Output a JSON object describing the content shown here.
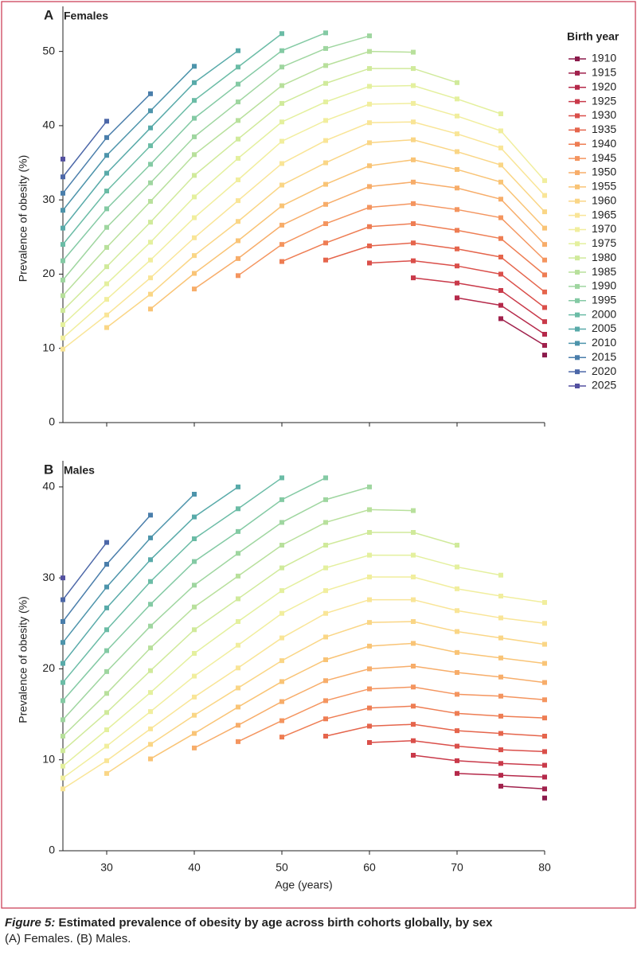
{
  "chart_data": [
    {
      "type": "line",
      "panel_label": "A",
      "title": "Females",
      "ylabel": "Prevalence of obesity (%)",
      "legend_title": "Birth year",
      "x": [
        25,
        30,
        35,
        40,
        45,
        50,
        55,
        60,
        65,
        70,
        75,
        80
      ],
      "xlim": [
        25,
        80
      ],
      "xticks": [
        30,
        40,
        50,
        60,
        70,
        80
      ],
      "ylim": [
        0,
        55
      ],
      "yticks": [
        0,
        10,
        20,
        30,
        40,
        50
      ],
      "series": [
        {
          "name": "1910",
          "color": "#8b1a4b",
          "values": [
            null,
            null,
            null,
            null,
            null,
            null,
            null,
            null,
            null,
            null,
            null,
            9.1
          ]
        },
        {
          "name": "1915",
          "color": "#a0214c",
          "values": [
            null,
            null,
            null,
            null,
            null,
            null,
            null,
            null,
            null,
            null,
            14.0,
            10.4
          ]
        },
        {
          "name": "1920",
          "color": "#b5294a",
          "values": [
            null,
            null,
            null,
            null,
            null,
            null,
            null,
            null,
            null,
            16.8,
            15.8,
            11.9
          ]
        },
        {
          "name": "1925",
          "color": "#c93a4a",
          "values": [
            null,
            null,
            null,
            null,
            null,
            null,
            null,
            null,
            19.5,
            18.8,
            17.8,
            13.6
          ]
        },
        {
          "name": "1930",
          "color": "#da4f4a",
          "values": [
            null,
            null,
            null,
            null,
            null,
            null,
            null,
            21.5,
            21.8,
            21.1,
            20.0,
            15.5
          ]
        },
        {
          "name": "1935",
          "color": "#e5654c",
          "values": [
            null,
            null,
            null,
            null,
            null,
            null,
            21.9,
            23.8,
            24.2,
            23.4,
            22.3,
            17.6
          ]
        },
        {
          "name": "1940",
          "color": "#ee7d53",
          "values": [
            null,
            null,
            null,
            null,
            null,
            21.7,
            24.2,
            26.4,
            26.8,
            25.9,
            24.8,
            19.9
          ]
        },
        {
          "name": "1945",
          "color": "#f4955f",
          "values": [
            null,
            null,
            null,
            null,
            19.8,
            24.0,
            26.8,
            29.0,
            29.5,
            28.7,
            27.6,
            21.9
          ]
        },
        {
          "name": "1950",
          "color": "#f7ad6a",
          "values": [
            null,
            null,
            null,
            18.0,
            22.1,
            26.6,
            29.4,
            31.8,
            32.4,
            31.6,
            30.1,
            24.0
          ]
        },
        {
          "name": "1955",
          "color": "#f9c476",
          "values": [
            null,
            null,
            15.3,
            20.1,
            24.5,
            29.2,
            32.1,
            34.6,
            35.4,
            34.1,
            32.4,
            26.2
          ]
        },
        {
          "name": "1960",
          "color": "#fad686",
          "values": [
            null,
            12.8,
            17.3,
            22.5,
            27.1,
            32.0,
            35.0,
            37.7,
            38.1,
            36.5,
            34.7,
            28.4
          ]
        },
        {
          "name": "1965",
          "color": "#f9e597",
          "values": [
            9.9,
            14.5,
            19.5,
            24.9,
            29.9,
            34.9,
            38.0,
            40.4,
            40.5,
            38.9,
            37.0,
            30.6
          ]
        },
        {
          "name": "1970",
          "color": "#f1ee9e",
          "values": [
            11.4,
            16.6,
            21.9,
            27.6,
            32.7,
            37.9,
            40.7,
            42.9,
            43.0,
            41.3,
            39.3,
            32.6
          ]
        },
        {
          "name": "1975",
          "color": "#e4f09e",
          "values": [
            13.2,
            18.7,
            24.3,
            30.4,
            35.6,
            40.5,
            43.2,
            45.3,
            45.4,
            43.6,
            41.6,
            null
          ]
        },
        {
          "name": "1980",
          "color": "#d0ea9b",
          "values": [
            15.1,
            21.0,
            27.0,
            33.3,
            38.2,
            43.0,
            45.7,
            47.7,
            47.7,
            45.8,
            null,
            null
          ]
        },
        {
          "name": "1985",
          "color": "#b8e09c",
          "values": [
            17.1,
            23.6,
            29.8,
            36.1,
            40.7,
            45.4,
            48.1,
            50.0,
            49.9,
            null,
            null,
            null
          ]
        },
        {
          "name": "1990",
          "color": "#9fd6a0",
          "values": [
            19.2,
            26.3,
            32.3,
            38.5,
            43.2,
            47.9,
            50.4,
            52.1,
            null,
            null,
            null,
            null
          ]
        },
        {
          "name": "1995",
          "color": "#84caa4",
          "values": [
            21.8,
            28.8,
            34.8,
            41.0,
            45.6,
            50.1,
            52.5,
            null,
            null,
            null,
            null,
            null
          ]
        },
        {
          "name": "2000",
          "color": "#6bbca6",
          "values": [
            24.0,
            31.2,
            37.3,
            43.4,
            47.9,
            52.4,
            null,
            null,
            null,
            null,
            null,
            null
          ]
        },
        {
          "name": "2005",
          "color": "#58aaa9",
          "values": [
            26.2,
            33.6,
            39.7,
            45.8,
            50.1,
            null,
            null,
            null,
            null,
            null,
            null,
            null
          ]
        },
        {
          "name": "2010",
          "color": "#4d94ab",
          "values": [
            28.6,
            36.0,
            42.0,
            48.0,
            null,
            null,
            null,
            null,
            null,
            null,
            null,
            null
          ]
        },
        {
          "name": "2015",
          "color": "#4a7eab",
          "values": [
            30.9,
            38.4,
            44.3,
            null,
            null,
            null,
            null,
            null,
            null,
            null,
            null,
            null
          ]
        },
        {
          "name": "2020",
          "color": "#4c67a8",
          "values": [
            33.1,
            40.6,
            null,
            null,
            null,
            null,
            null,
            null,
            null,
            null,
            null,
            null
          ]
        },
        {
          "name": "2025",
          "color": "#5350a0",
          "values": [
            35.5,
            null,
            null,
            null,
            null,
            null,
            null,
            null,
            null,
            null,
            null,
            null
          ]
        }
      ]
    },
    {
      "type": "line",
      "panel_label": "B",
      "title": "Males",
      "ylabel": "Prevalence of obesity (%)",
      "xlabel": "Age (years)",
      "x": [
        25,
        30,
        35,
        40,
        45,
        50,
        55,
        60,
        65,
        70,
        75,
        80
      ],
      "xlim": [
        25,
        80
      ],
      "xticks": [
        30,
        40,
        50,
        60,
        70,
        80
      ],
      "ylim": [
        0,
        42
      ],
      "yticks": [
        0,
        10,
        20,
        30,
        40
      ],
      "series": [
        {
          "color": "#8b1a4b",
          "values": [
            null,
            null,
            null,
            null,
            null,
            null,
            null,
            null,
            null,
            null,
            null,
            5.8
          ]
        },
        {
          "color": "#a0214c",
          "values": [
            null,
            null,
            null,
            null,
            null,
            null,
            null,
            null,
            null,
            null,
            7.1,
            6.8
          ]
        },
        {
          "color": "#b5294a",
          "values": [
            null,
            null,
            null,
            null,
            null,
            null,
            null,
            null,
            null,
            8.5,
            8.3,
            8.1
          ]
        },
        {
          "color": "#c93a4a",
          "values": [
            null,
            null,
            null,
            null,
            null,
            null,
            null,
            null,
            10.5,
            9.9,
            9.6,
            9.4
          ]
        },
        {
          "color": "#da4f4a",
          "values": [
            null,
            null,
            null,
            null,
            null,
            null,
            null,
            11.9,
            12.1,
            11.5,
            11.1,
            10.9
          ]
        },
        {
          "color": "#e5654c",
          "values": [
            null,
            null,
            null,
            null,
            null,
            null,
            12.6,
            13.7,
            13.9,
            13.2,
            12.9,
            12.6
          ]
        },
        {
          "color": "#ee7d53",
          "values": [
            null,
            null,
            null,
            null,
            null,
            12.5,
            14.5,
            15.7,
            15.9,
            15.1,
            14.8,
            14.6
          ]
        },
        {
          "color": "#f4955f",
          "values": [
            null,
            null,
            null,
            null,
            12.0,
            14.3,
            16.5,
            17.8,
            18.0,
            17.2,
            17.0,
            16.6
          ]
        },
        {
          "color": "#f7ad6a",
          "values": [
            null,
            null,
            null,
            11.3,
            13.8,
            16.4,
            18.7,
            20.0,
            20.3,
            19.6,
            19.1,
            18.5
          ]
        },
        {
          "color": "#f9c476",
          "values": [
            null,
            null,
            10.1,
            12.9,
            15.8,
            18.6,
            21.0,
            22.5,
            22.8,
            21.8,
            21.2,
            20.6
          ]
        },
        {
          "color": "#fad686",
          "values": [
            null,
            8.5,
            11.7,
            14.9,
            17.9,
            20.9,
            23.5,
            25.1,
            25.2,
            24.1,
            23.4,
            22.7
          ]
        },
        {
          "color": "#f9e597",
          "values": [
            6.8,
            9.9,
            13.4,
            16.9,
            20.1,
            23.4,
            26.1,
            27.6,
            27.6,
            26.4,
            25.6,
            25.0
          ]
        },
        {
          "color": "#f1ee9e",
          "values": [
            8.0,
            11.5,
            15.3,
            19.2,
            22.6,
            26.1,
            28.6,
            30.1,
            30.1,
            28.8,
            28.0,
            27.3
          ]
        },
        {
          "color": "#e4f09e",
          "values": [
            9.3,
            13.3,
            17.4,
            21.7,
            25.2,
            28.6,
            31.1,
            32.5,
            32.5,
            31.2,
            30.3,
            null
          ]
        },
        {
          "color": "#d0ea9b",
          "values": [
            11.0,
            15.2,
            19.8,
            24.3,
            27.7,
            31.1,
            33.6,
            35.0,
            35.0,
            33.6,
            null,
            null
          ]
        },
        {
          "color": "#b8e09c",
          "values": [
            12.6,
            17.3,
            22.3,
            26.8,
            30.2,
            33.6,
            36.1,
            37.5,
            37.4,
            null,
            null,
            null
          ]
        },
        {
          "color": "#9fd6a0",
          "values": [
            14.4,
            19.7,
            24.7,
            29.2,
            32.7,
            36.1,
            38.6,
            40.0,
            null,
            null,
            null,
            null
          ]
        },
        {
          "color": "#84caa4",
          "values": [
            16.5,
            22.0,
            27.1,
            31.8,
            35.1,
            38.6,
            41.0,
            null,
            null,
            null,
            null,
            null
          ]
        },
        {
          "color": "#6bbca6",
          "values": [
            18.5,
            24.3,
            29.6,
            34.3,
            37.6,
            41.0,
            null,
            null,
            null,
            null,
            null,
            null
          ]
        },
        {
          "color": "#58aaa9",
          "values": [
            20.6,
            26.7,
            32.0,
            36.7,
            40.0,
            null,
            null,
            null,
            null,
            null,
            null,
            null
          ]
        },
        {
          "color": "#4d94ab",
          "values": [
            22.9,
            29.0,
            34.4,
            39.2,
            null,
            null,
            null,
            null,
            null,
            null,
            null,
            null
          ]
        },
        {
          "color": "#4a7eab",
          "values": [
            25.2,
            31.5,
            36.9,
            null,
            null,
            null,
            null,
            null,
            null,
            null,
            null,
            null
          ]
        },
        {
          "color": "#4c67a8",
          "values": [
            27.6,
            33.9,
            null,
            null,
            null,
            null,
            null,
            null,
            null,
            null,
            null,
            null
          ]
        },
        {
          "color": "#5350a0",
          "values": [
            30.0,
            null,
            null,
            null,
            null,
            null,
            null,
            null,
            null,
            null,
            null,
            null
          ]
        }
      ]
    }
  ],
  "caption": {
    "label": "Figure 5:",
    "text": " Estimated prevalence of obesity by age across birth cohorts globally, by sex",
    "subtext": "(A) Females. (B) Males."
  }
}
